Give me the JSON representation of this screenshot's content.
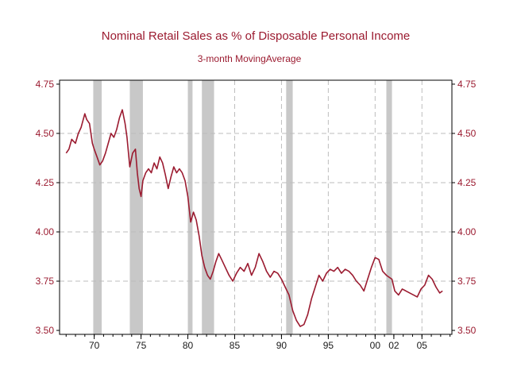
{
  "chart_data": {
    "type": "line",
    "title": "Nominal Retail Sales as % of Disposable Personal Income",
    "subtitle": "3-month MovingAverage",
    "xlabel": "",
    "ylabel": "",
    "xlim": [
      1966.3,
      2008.2
    ],
    "ylim": [
      3.48,
      4.77
    ],
    "y_ticks": [
      3.5,
      3.75,
      4.0,
      4.25,
      4.5,
      4.75
    ],
    "y_tick_labels": [
      "3.50",
      "3.75",
      "4.00",
      "4.25",
      "4.50",
      "4.75"
    ],
    "x_ticks": [
      1970,
      1975,
      1980,
      1985,
      1990,
      1995,
      2000,
      2002,
      2005
    ],
    "x_tick_labels": [
      "70",
      "75",
      "80",
      "85",
      "90",
      "95",
      "00",
      "02",
      "05"
    ],
    "x_gridlines": [
      1985,
      1990,
      1995,
      2000,
      2005
    ],
    "y_gridlines": [
      3.75,
      4.0,
      4.25,
      4.5
    ],
    "grid": true,
    "recessions": [
      {
        "start": 1969.9,
        "end": 1970.8
      },
      {
        "start": 1973.8,
        "end": 1975.2
      },
      {
        "start": 1980.0,
        "end": 1980.5
      },
      {
        "start": 1981.5,
        "end": 1982.8
      },
      {
        "start": 1990.5,
        "end": 1991.2
      },
      {
        "start": 2001.2,
        "end": 2001.8
      }
    ],
    "series": [
      {
        "name": "Nominal Retail Sales as % of Disposable Personal Income",
        "color": "#9b1b30",
        "x": [
          1967.0,
          1967.3,
          1967.6,
          1968.0,
          1968.3,
          1968.6,
          1969.0,
          1969.2,
          1969.5,
          1969.8,
          1970.0,
          1970.3,
          1970.6,
          1970.9,
          1971.2,
          1971.5,
          1971.8,
          1972.1,
          1972.4,
          1972.7,
          1973.0,
          1973.3,
          1973.5,
          1973.8,
          1974.1,
          1974.4,
          1974.6,
          1974.8,
          1975.0,
          1975.2,
          1975.5,
          1975.8,
          1976.1,
          1976.4,
          1976.7,
          1977.0,
          1977.3,
          1977.6,
          1977.9,
          1978.2,
          1978.5,
          1978.8,
          1979.1,
          1979.4,
          1979.7,
          1980.0,
          1980.3,
          1980.6,
          1980.9,
          1981.2,
          1981.5,
          1981.8,
          1982.1,
          1982.4,
          1982.7,
          1983.0,
          1983.3,
          1983.6,
          1984.0,
          1984.4,
          1984.8,
          1985.2,
          1985.6,
          1986.0,
          1986.4,
          1986.8,
          1987.2,
          1987.6,
          1988.0,
          1988.4,
          1988.8,
          1989.2,
          1989.6,
          1990.0,
          1990.4,
          1990.8,
          1991.2,
          1991.6,
          1992.0,
          1992.4,
          1992.8,
          1993.2,
          1993.6,
          1994.0,
          1994.4,
          1994.8,
          1995.2,
          1995.6,
          1996.0,
          1996.4,
          1996.8,
          1997.2,
          1997.6,
          1998.0,
          1998.4,
          1998.8,
          1999.2,
          1999.6,
          2000.0,
          2000.4,
          2000.8,
          2001.2,
          2001.5,
          2001.8,
          2002.1,
          2002.5,
          2002.9,
          2003.3,
          2003.7,
          2004.1,
          2004.5,
          2004.9,
          2005.3,
          2005.7,
          2006.1,
          2006.5,
          2006.9,
          2007.2
        ],
        "y": [
          4.4,
          4.42,
          4.47,
          4.45,
          4.5,
          4.53,
          4.6,
          4.57,
          4.55,
          4.45,
          4.42,
          4.38,
          4.34,
          4.36,
          4.4,
          4.45,
          4.5,
          4.48,
          4.52,
          4.58,
          4.62,
          4.55,
          4.48,
          4.33,
          4.4,
          4.42,
          4.3,
          4.22,
          4.18,
          4.26,
          4.3,
          4.32,
          4.3,
          4.35,
          4.32,
          4.38,
          4.35,
          4.29,
          4.22,
          4.28,
          4.33,
          4.3,
          4.32,
          4.3,
          4.26,
          4.18,
          4.05,
          4.1,
          4.06,
          3.98,
          3.88,
          3.82,
          3.78,
          3.76,
          3.8,
          3.85,
          3.89,
          3.86,
          3.82,
          3.78,
          3.75,
          3.79,
          3.82,
          3.8,
          3.84,
          3.78,
          3.82,
          3.89,
          3.85,
          3.8,
          3.77,
          3.8,
          3.79,
          3.76,
          3.72,
          3.68,
          3.6,
          3.55,
          3.52,
          3.53,
          3.58,
          3.66,
          3.72,
          3.78,
          3.75,
          3.79,
          3.81,
          3.8,
          3.82,
          3.79,
          3.81,
          3.8,
          3.78,
          3.75,
          3.73,
          3.7,
          3.76,
          3.82,
          3.87,
          3.86,
          3.8,
          3.78,
          3.77,
          3.76,
          3.7,
          3.68,
          3.71,
          3.7,
          3.69,
          3.68,
          3.67,
          3.71,
          3.73,
          3.78,
          3.76,
          3.72,
          3.69,
          3.7
        ]
      }
    ]
  },
  "colors": {
    "title": "#9b1b30",
    "line": "#9b1b30",
    "tick_text": "#9b1b30",
    "x_tick_text": "#1a1a1a",
    "recession": "#c8c8c8",
    "grid": "#bdbdbd",
    "axis": "#000000"
  }
}
